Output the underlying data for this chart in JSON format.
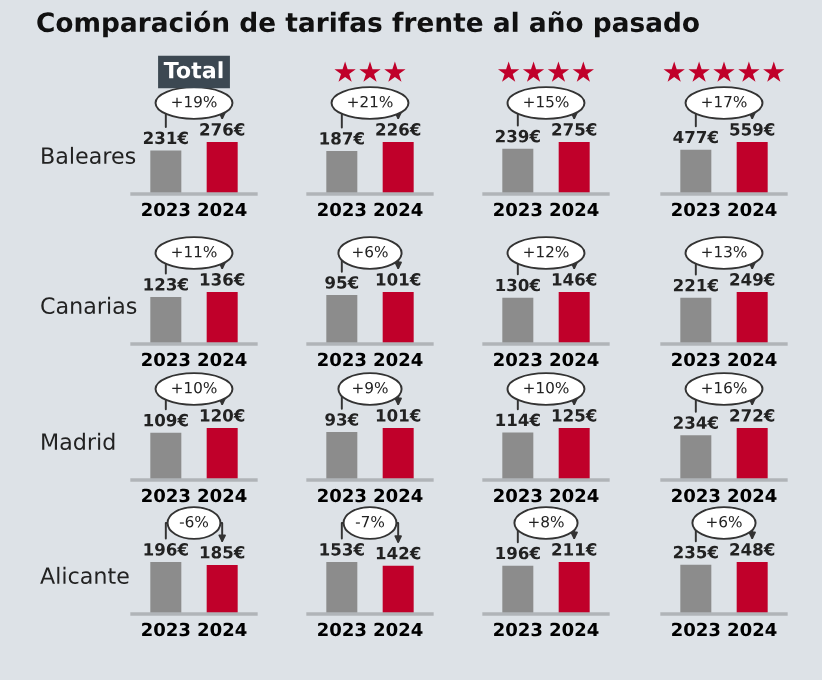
{
  "chart_data": [
    {
      "type": "bar",
      "title": "Comparación de tarifas frente al año pasado",
      "subtitle": "Total",
      "ylabel": "Baleares",
      "categories": [
        "2023",
        "2024"
      ],
      "values": [
        231,
        276
      ],
      "colors": [
        "#8c8c8c",
        "#c0002a"
      ],
      "value_labels": [
        "231€",
        "276€"
      ],
      "annotations": [
        "+19%"
      ],
      "tick_labels": "x"
    },
    {
      "type": "bar",
      "title": "★★★",
      "categories": [
        "2023",
        "2024"
      ],
      "values": [
        187,
        226
      ],
      "colors": [
        "#8c8c8c",
        "#c0002a"
      ],
      "value_labels": [
        "187€",
        "226€"
      ],
      "annotations": [
        "+21%"
      ],
      "tick_labels": "x"
    },
    {
      "type": "bar",
      "title": "★★★★",
      "categories": [
        "2023",
        "2024"
      ],
      "values": [
        239,
        275
      ],
      "colors": [
        "#8c8c8c",
        "#c0002a"
      ],
      "value_labels": [
        "239€",
        "275€"
      ],
      "annotations": [
        "+15%"
      ],
      "tick_labels": "x"
    },
    {
      "type": "bar",
      "title": "★★★★★",
      "categories": [
        "2023",
        "2024"
      ],
      "values": [
        477,
        559
      ],
      "colors": [
        "#8c8c8c",
        "#c0002a"
      ],
      "value_labels": [
        "477€",
        "559€"
      ],
      "annotations": [
        "+17%"
      ],
      "tick_labels": "x"
    },
    {
      "type": "bar",
      "ylabel": "Canarias",
      "categories": [
        "2023",
        "2024"
      ],
      "values": [
        123,
        136
      ],
      "colors": [
        "#8c8c8c",
        "#c0002a"
      ],
      "value_labels": [
        "123€",
        "136€"
      ],
      "annotations": [
        "+11%"
      ],
      "tick_labels": "x"
    },
    {
      "type": "bar",
      "categories": [
        "2023",
        "2024"
      ],
      "values": [
        95,
        101
      ],
      "colors": [
        "#8c8c8c",
        "#c0002a"
      ],
      "value_labels": [
        "95€",
        "101€"
      ],
      "annotations": [
        "+6%"
      ],
      "tick_labels": "x"
    },
    {
      "type": "bar",
      "categories": [
        "2023",
        "2024"
      ],
      "values": [
        130,
        146
      ],
      "colors": [
        "#8c8c8c",
        "#c0002a"
      ],
      "value_labels": [
        "130€",
        "146€"
      ],
      "annotations": [
        "+12%"
      ],
      "tick_labels": "x"
    },
    {
      "type": "bar",
      "categories": [
        "2023",
        "2024"
      ],
      "values": [
        221,
        249
      ],
      "colors": [
        "#8c8c8c",
        "#c0002a"
      ],
      "value_labels": [
        "221€",
        "249€"
      ],
      "annotations": [
        "+13%"
      ],
      "tick_labels": "x"
    },
    {
      "type": "bar",
      "ylabel": "Madrid",
      "categories": [
        "2023",
        "2024"
      ],
      "values": [
        109,
        120
      ],
      "colors": [
        "#8c8c8c",
        "#c0002a"
      ],
      "value_labels": [
        "109€",
        "120€"
      ],
      "annotations": [
        "+10%"
      ],
      "tick_labels": "x"
    },
    {
      "type": "bar",
      "categories": [
        "2023",
        "2024"
      ],
      "values": [
        93,
        101
      ],
      "colors": [
        "#8c8c8c",
        "#c0002a"
      ],
      "value_labels": [
        "93€",
        "101€"
      ],
      "annotations": [
        "+9%"
      ],
      "tick_labels": "x"
    },
    {
      "type": "bar",
      "categories": [
        "2023",
        "2024"
      ],
      "values": [
        114,
        125
      ],
      "colors": [
        "#8c8c8c",
        "#c0002a"
      ],
      "value_labels": [
        "114€",
        "125€"
      ],
      "annotations": [
        "+10%"
      ],
      "tick_labels": "x"
    },
    {
      "type": "bar",
      "categories": [
        "2023",
        "2024"
      ],
      "values": [
        234,
        272
      ],
      "colors": [
        "#8c8c8c",
        "#c0002a"
      ],
      "value_labels": [
        "234€",
        "272€"
      ],
      "annotations": [
        "+16%"
      ],
      "tick_labels": "x"
    },
    {
      "type": "bar",
      "ylabel": "Alicante",
      "categories": [
        "2023",
        "2024"
      ],
      "values": [
        196,
        185
      ],
      "colors": [
        "#8c8c8c",
        "#c0002a"
      ],
      "value_labels": [
        "196€",
        "185€"
      ],
      "annotations": [
        "-6%"
      ],
      "tick_labels": "x"
    },
    {
      "type": "bar",
      "categories": [
        "2023",
        "2024"
      ],
      "values": [
        153,
        142
      ],
      "colors": [
        "#8c8c8c",
        "#c0002a"
      ],
      "value_labels": [
        "153€",
        "142€"
      ],
      "annotations": [
        "-7%"
      ],
      "tick_labels": "x"
    },
    {
      "type": "bar",
      "categories": [
        "2023",
        "2024"
      ],
      "values": [
        196,
        211
      ],
      "colors": [
        "#8c8c8c",
        "#c0002a"
      ],
      "value_labels": [
        "196€",
        "211€"
      ],
      "annotations": [
        "+8%"
      ],
      "tick_labels": "x"
    },
    {
      "type": "bar",
      "categories": [
        "2023",
        "2024"
      ],
      "values": [
        235,
        248
      ],
      "colors": [
        "#8c8c8c",
        "#c0002a"
      ],
      "value_labels": [
        "235€",
        "248€"
      ],
      "annotations": [
        "+6%"
      ],
      "tick_labels": "x"
    }
  ]
}
